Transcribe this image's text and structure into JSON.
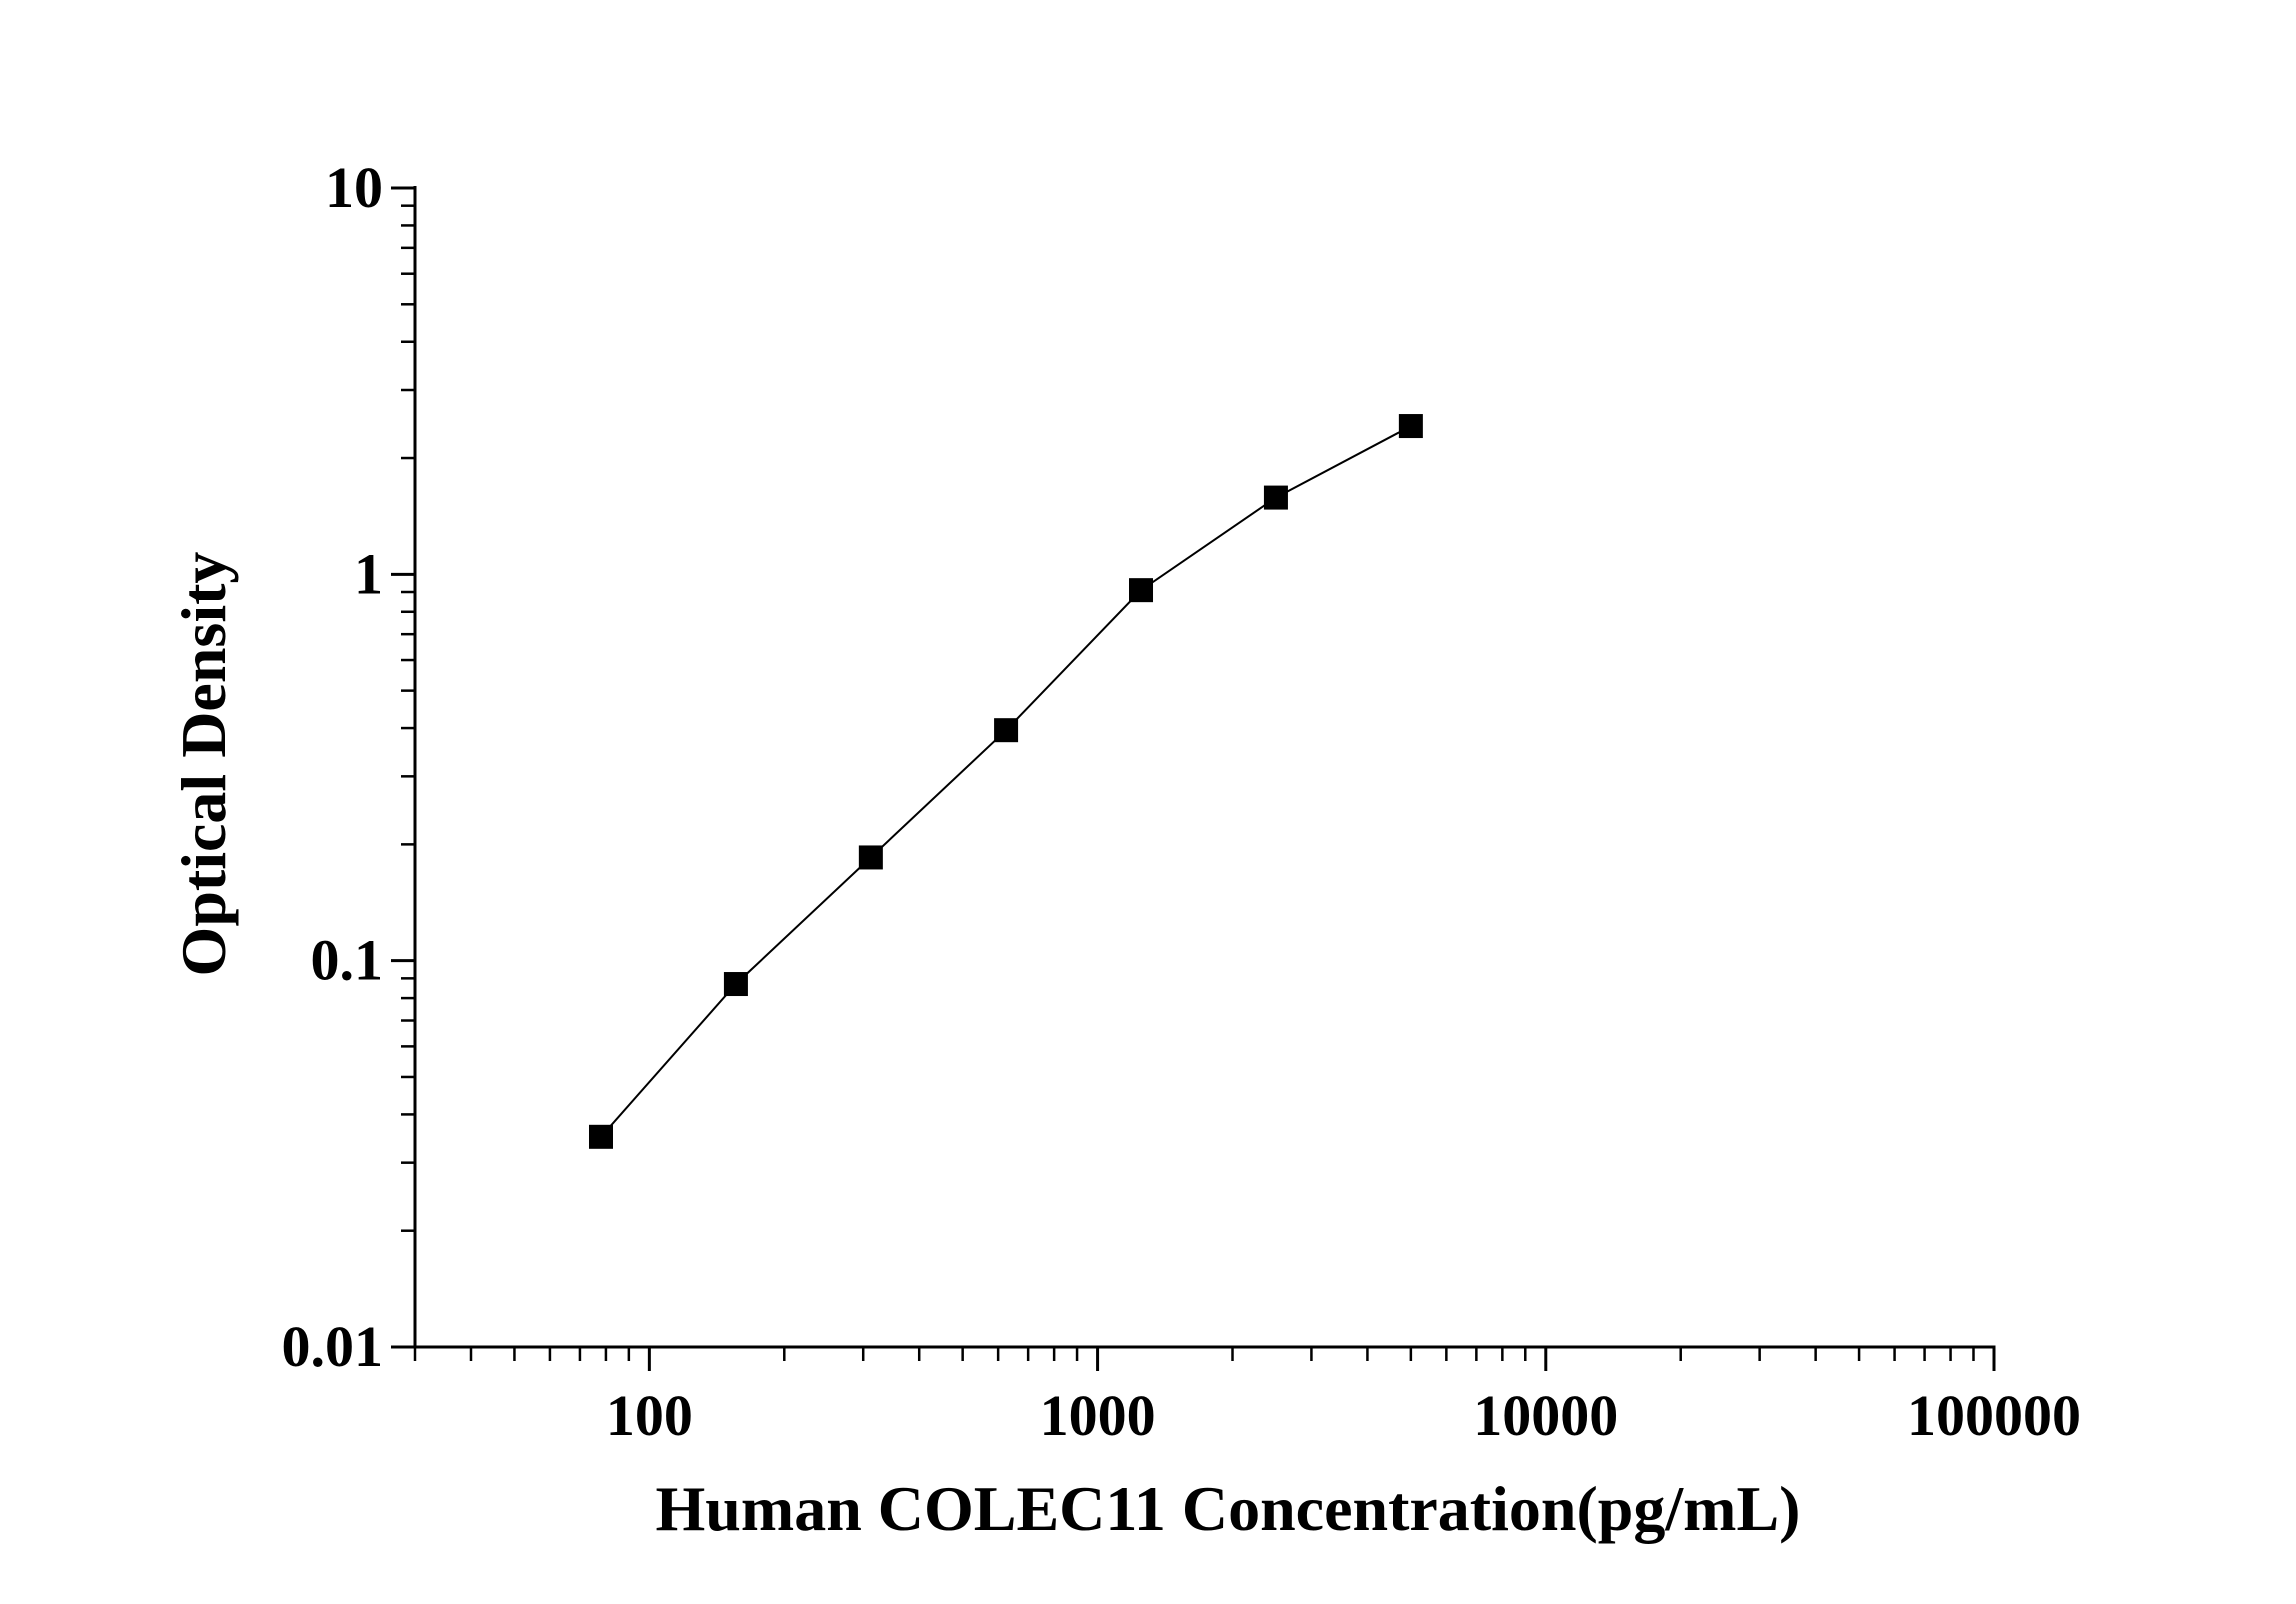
{
  "chart_data": {
    "type": "line",
    "title": "",
    "xlabel": "Human COLEC11 Concentration(pg/mL)",
    "ylabel": "Optical Density",
    "xscale": "log",
    "yscale": "log",
    "xlim": [
      30,
      100000
    ],
    "ylim": [
      0.01,
      10
    ],
    "x_ticks": [
      "100",
      "1000",
      "10000",
      "100000"
    ],
    "y_ticks": [
      "0.01",
      "0.1",
      "1",
      "10"
    ],
    "grid": false,
    "legend": "none",
    "marker": "square",
    "series": [
      {
        "x": [
          78,
          156,
          312,
          625,
          1250,
          2500,
          5000
        ],
        "y": [
          0.035,
          0.087,
          0.185,
          0.395,
          0.91,
          1.58,
          2.42
        ]
      }
    ],
    "colors": {
      "line": "#000000",
      "marker": "#000000",
      "axis": "#000000"
    }
  }
}
